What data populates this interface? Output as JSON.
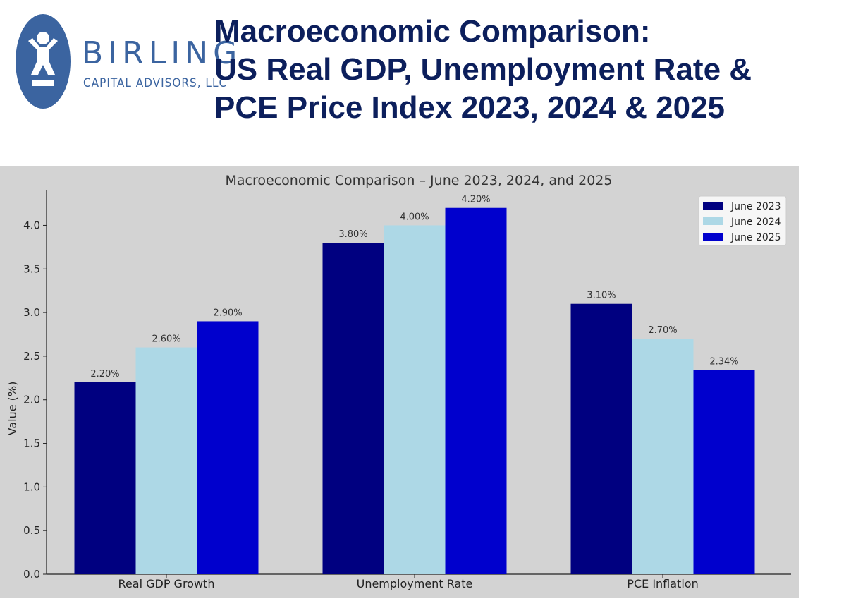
{
  "header": {
    "brand_name": "BIRLING",
    "brand_sub": "CAPITAL ADVISORS, LLC",
    "title_lines": [
      "Macroeconomic Comparison:",
      "US Real GDP, Unemployment Rate &",
      "PCE Price Index 2023, 2024 & 2025"
    ]
  },
  "colors": {
    "brand": "#3b64a0",
    "title": "#0c1f5c",
    "chart_bg": "#d3d3d3",
    "series": [
      "#000080",
      "#add8e6",
      "#0000cd"
    ]
  },
  "chart_data": {
    "type": "bar",
    "title": "Macroeconomic Comparison – June 2023, 2024, and 2025",
    "xlabel": "",
    "ylabel": "Value (%)",
    "ylim": [
      0,
      4.4
    ],
    "yticks": [
      "0.0",
      "0.5",
      "1.0",
      "1.5",
      "2.0",
      "2.5",
      "3.0",
      "3.5",
      "4.0"
    ],
    "categories": [
      "Real GDP Growth",
      "Unemployment Rate",
      "PCE Inflation"
    ],
    "series": [
      {
        "name": "June 2023",
        "values": [
          2.2,
          3.8,
          3.1
        ],
        "labels": [
          "2.20%",
          "3.80%",
          "3.10%"
        ]
      },
      {
        "name": "June 2024",
        "values": [
          2.6,
          4.0,
          2.7
        ],
        "labels": [
          "2.60%",
          "4.00%",
          "2.70%"
        ]
      },
      {
        "name": "June 2025",
        "values": [
          2.9,
          4.2,
          2.34
        ],
        "labels": [
          "2.90%",
          "4.20%",
          "2.34%"
        ]
      }
    ],
    "legend": "top-right",
    "grid": false
  }
}
